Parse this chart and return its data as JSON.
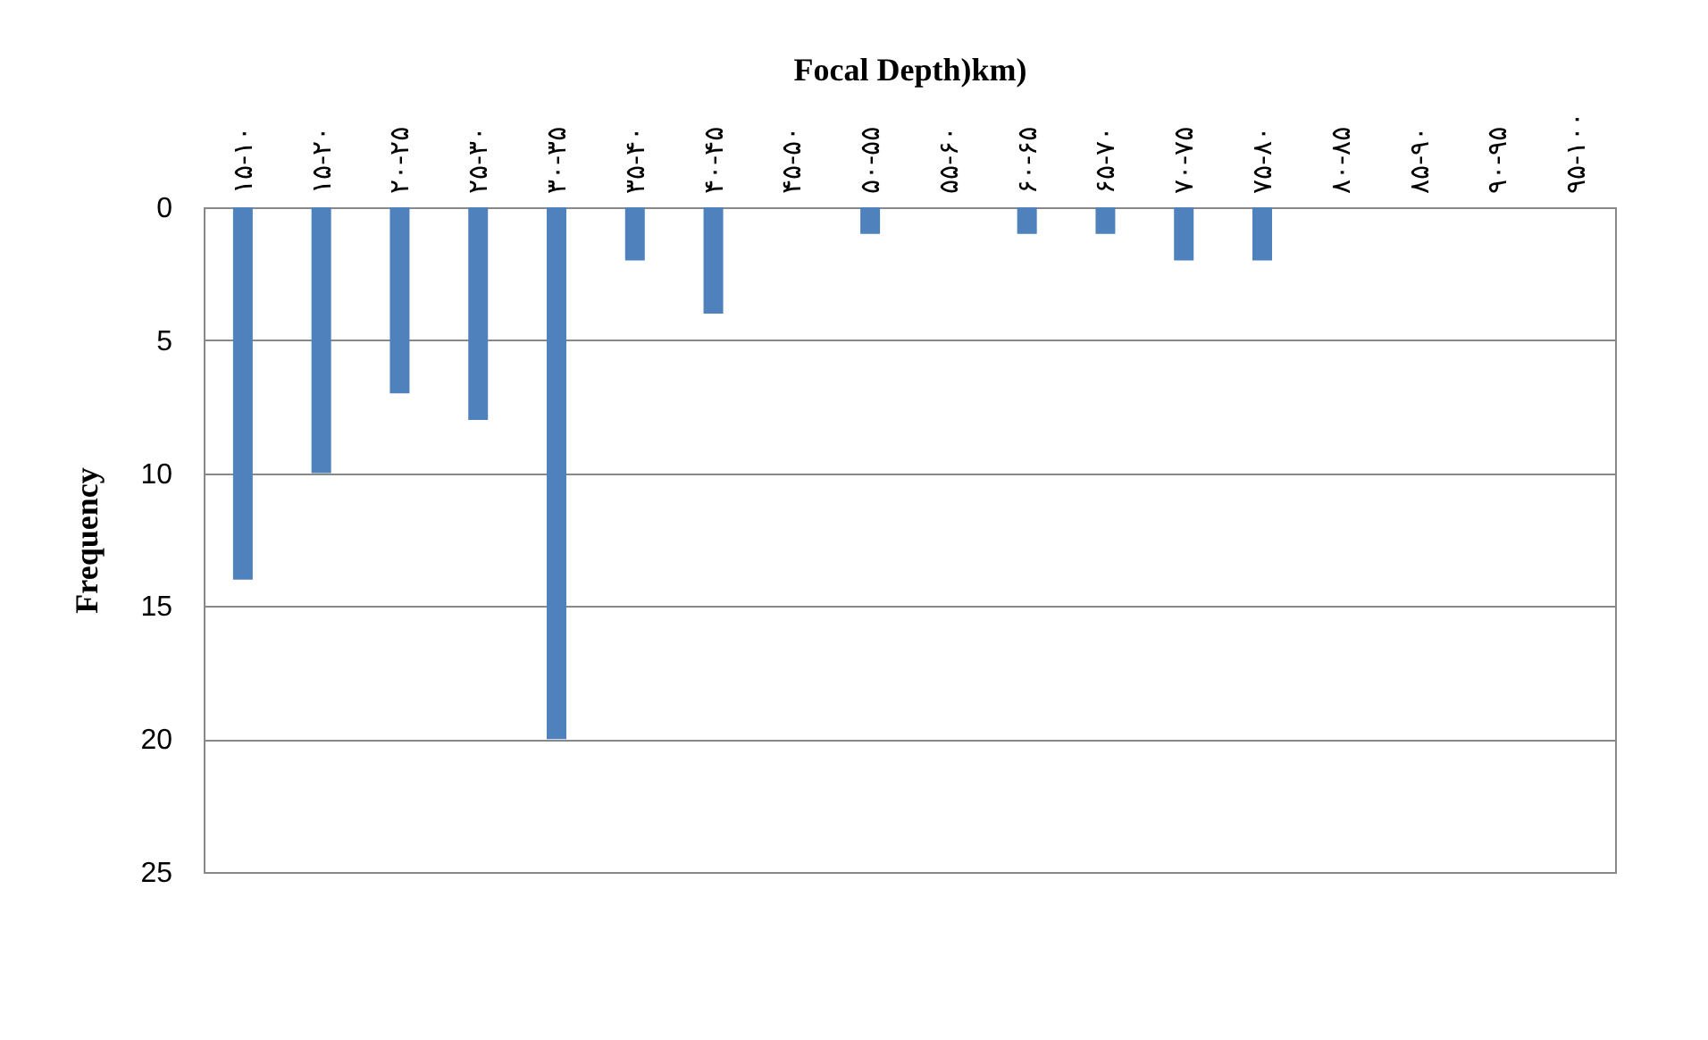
{
  "chart_data": {
    "type": "bar",
    "xlabel": "Focal Depth)km)",
    "ylabel": "Frequency",
    "categories": [
      "۱۵-۱۰",
      "۱۵-۲۰",
      "۲۰-۲۵",
      "۲۵-۳۰",
      "۳۰-۳۵",
      "۳۵-۴۰",
      "۴۰-۴۵",
      "۴۵-۵۰",
      "۵۰-۵۵",
      "۵۵-۶۰",
      "۶۰-۶۵",
      "۶۵-۷۰",
      "۷۰-۷۵",
      "۷۵-۸۰",
      "۸۰-۸۵",
      "۸۵-۹۰",
      "۹۰-۹۵",
      "۹۵-۱۰۰"
    ],
    "values": [
      14,
      10,
      7,
      8,
      20,
      2,
      4,
      0,
      1,
      0,
      1,
      1,
      2,
      2,
      0,
      0,
      0,
      0
    ],
    "color": "#4f81bd",
    "ylim": [
      25,
      0
    ],
    "yticks": [
      0,
      5,
      10,
      15,
      20,
      25
    ],
    "grid": "y"
  }
}
